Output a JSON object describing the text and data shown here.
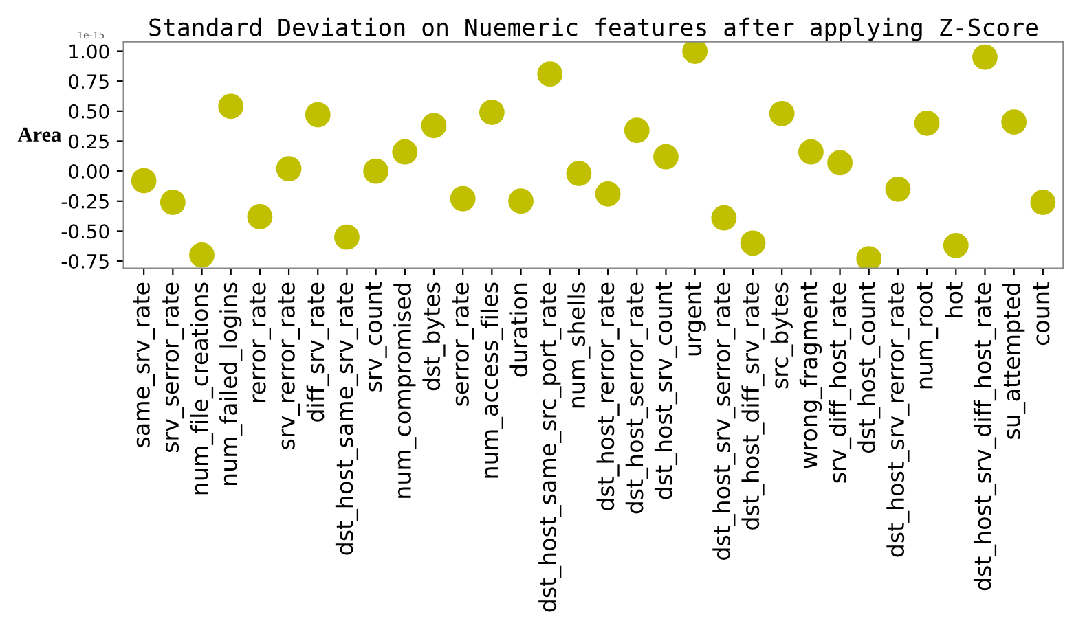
{
  "chart_data": {
    "type": "scatter",
    "title": "Standard Deviation on Nuemeric features after applying Z-Score",
    "ylabel": "Area",
    "annotations": [
      "1e-15"
    ],
    "categories": [
      "same_srv_rate",
      "srv_serror_rate",
      "num_file_creations",
      "num_failed_logins",
      "rerror_rate",
      "srv_rerror_rate",
      "diff_srv_rate",
      "dst_host_same_srv_rate",
      "srv_count",
      "num_compromised",
      "dst_bytes",
      "serror_rate",
      "num_access_files",
      "duration",
      "dst_host_same_src_port_rate",
      "num_shells",
      "dst_host_rerror_rate",
      "dst_host_serror_rate",
      "dst_host_srv_count",
      "urgent",
      "dst_host_srv_serror_rate",
      "dst_host_diff_srv_rate",
      "src_bytes",
      "wrong_fragment",
      "srv_diff_host_rate",
      "dst_host_count",
      "dst_host_srv_rerror_rate",
      "num_root",
      "hot",
      "dst_host_srv_diff_host_rate",
      "su_attempted",
      "count"
    ],
    "series": [
      {
        "color": "#c0c000",
        "values": [
          -0.08,
          -0.26,
          -0.7,
          0.54,
          -0.38,
          0.02,
          0.47,
          -0.55,
          0.0,
          0.16,
          0.38,
          -0.23,
          0.49,
          -0.25,
          0.81,
          -0.02,
          -0.19,
          0.34,
          0.12,
          1.0,
          -0.39,
          -0.6,
          0.48,
          0.16,
          0.07,
          -0.73,
          -0.15,
          0.4,
          -0.62,
          0.95,
          0.41,
          -0.26
        ]
      }
    ],
    "ylim": [
      -0.81,
      1.08
    ],
    "yticks": [
      {
        "value": -0.75,
        "label": "-0.75"
      },
      {
        "value": -0.5,
        "label": "-0.50"
      },
      {
        "value": -0.25,
        "label": "-0.25"
      },
      {
        "value": 0,
        "label": "0.00"
      },
      {
        "value": 0.25,
        "label": "0.25"
      },
      {
        "value": 0.5,
        "label": "0.50"
      },
      {
        "value": 0.75,
        "label": "0.75"
      },
      {
        "value": 1,
        "label": "1.00"
      }
    ],
    "grid": false,
    "legend": false,
    "marker": "circle"
  }
}
